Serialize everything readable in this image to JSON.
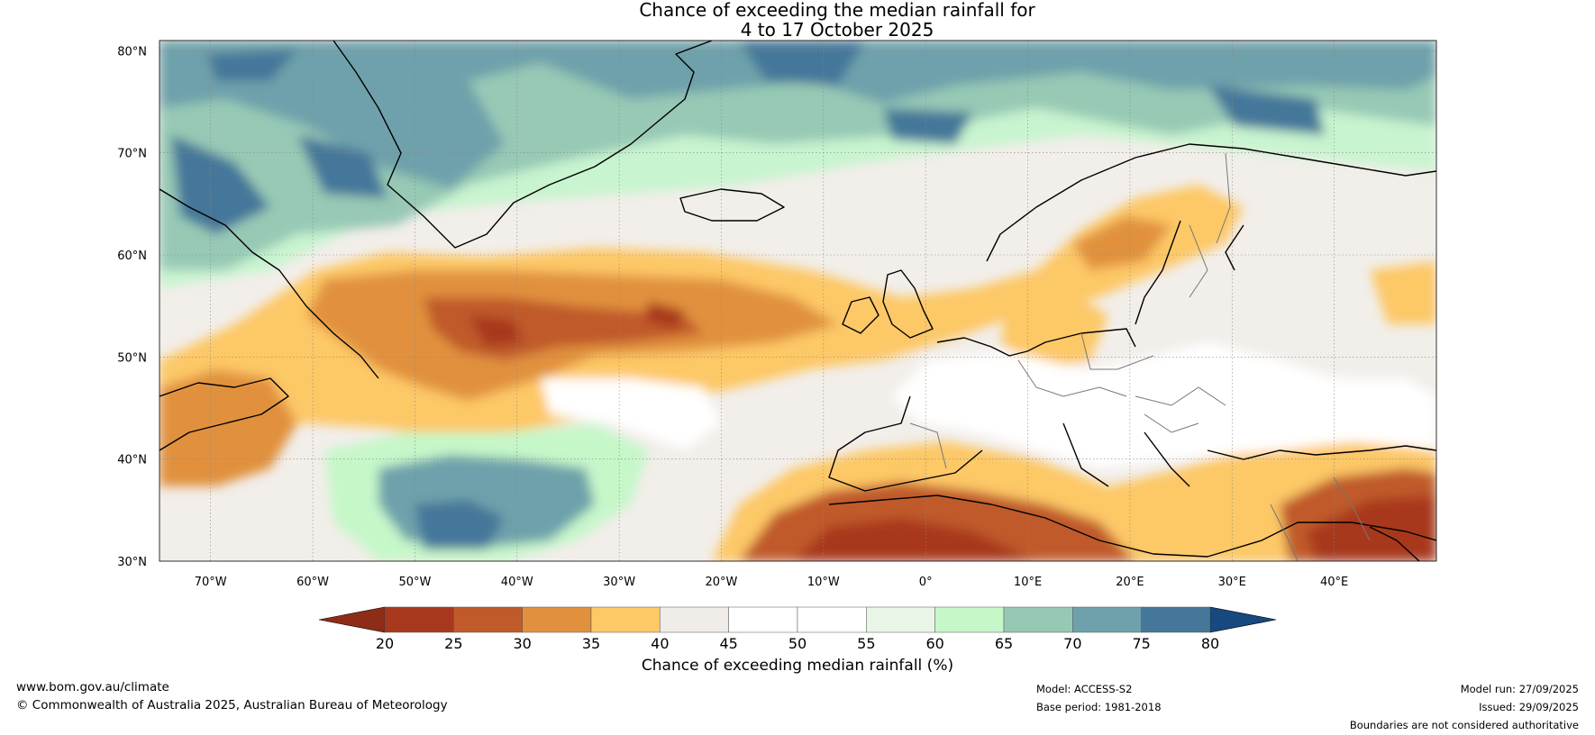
{
  "header": {
    "title_line1": "Chance of exceeding the median rainfall for",
    "title_line2": "4 to 17 October 2025"
  },
  "map": {
    "lat_labels": [
      "80°N",
      "70°N",
      "60°N",
      "50°N",
      "40°N",
      "30°N"
    ],
    "lat_values": [
      80,
      70,
      60,
      50,
      40,
      30
    ],
    "lon_labels": [
      "70°W",
      "60°W",
      "50°W",
      "40°W",
      "30°W",
      "20°W",
      "10°W",
      "0°",
      "10°E",
      "20°E",
      "30°E",
      "40°E"
    ],
    "lon_values": [
      -70,
      -60,
      -50,
      -40,
      -30,
      -20,
      -10,
      0,
      10,
      20,
      30,
      40
    ],
    "extent": {
      "lon_min": -75,
      "lon_max": 50,
      "lat_min": 30,
      "lat_max": 81
    },
    "regions": [
      {
        "name": "greenland-high",
        "category": "70-75"
      },
      {
        "name": "north-atlantic-band",
        "category": "25-35"
      },
      {
        "name": "north-africa",
        "category": "20-25"
      },
      {
        "name": "central-atlantic-wet",
        "category": "65-80"
      }
    ]
  },
  "legend": {
    "ticks": [
      "20",
      "25",
      "30",
      "35",
      "40",
      "45",
      "50",
      "55",
      "60",
      "65",
      "70",
      "75",
      "80"
    ],
    "colors": [
      "#a8391f",
      "#c05a2a",
      "#e1913e",
      "#fdc866",
      "#f0ece8",
      "#ffffff",
      "#ffffff",
      "#e9f6e7",
      "#c6f7c9",
      "#96c9b4",
      "#6ea1ab",
      "#44779a"
    ],
    "extend_low_color": "#8e2d17",
    "extend_high_color": "#16497f",
    "label": "Chance of exceeding median rainfall (%)"
  },
  "footer": {
    "website": "www.bom.gov.au/climate",
    "copyright": "© Commonwealth of Australia 2025, Australian Bureau of Meteorology",
    "model": "Model: ACCESS-S2",
    "base_period": "Base period: 1981-2018",
    "model_run": "Model run: 27/09/2025",
    "issued": "Issued: 29/09/2025",
    "disclaimer": "Boundaries are not considered authoritative"
  }
}
